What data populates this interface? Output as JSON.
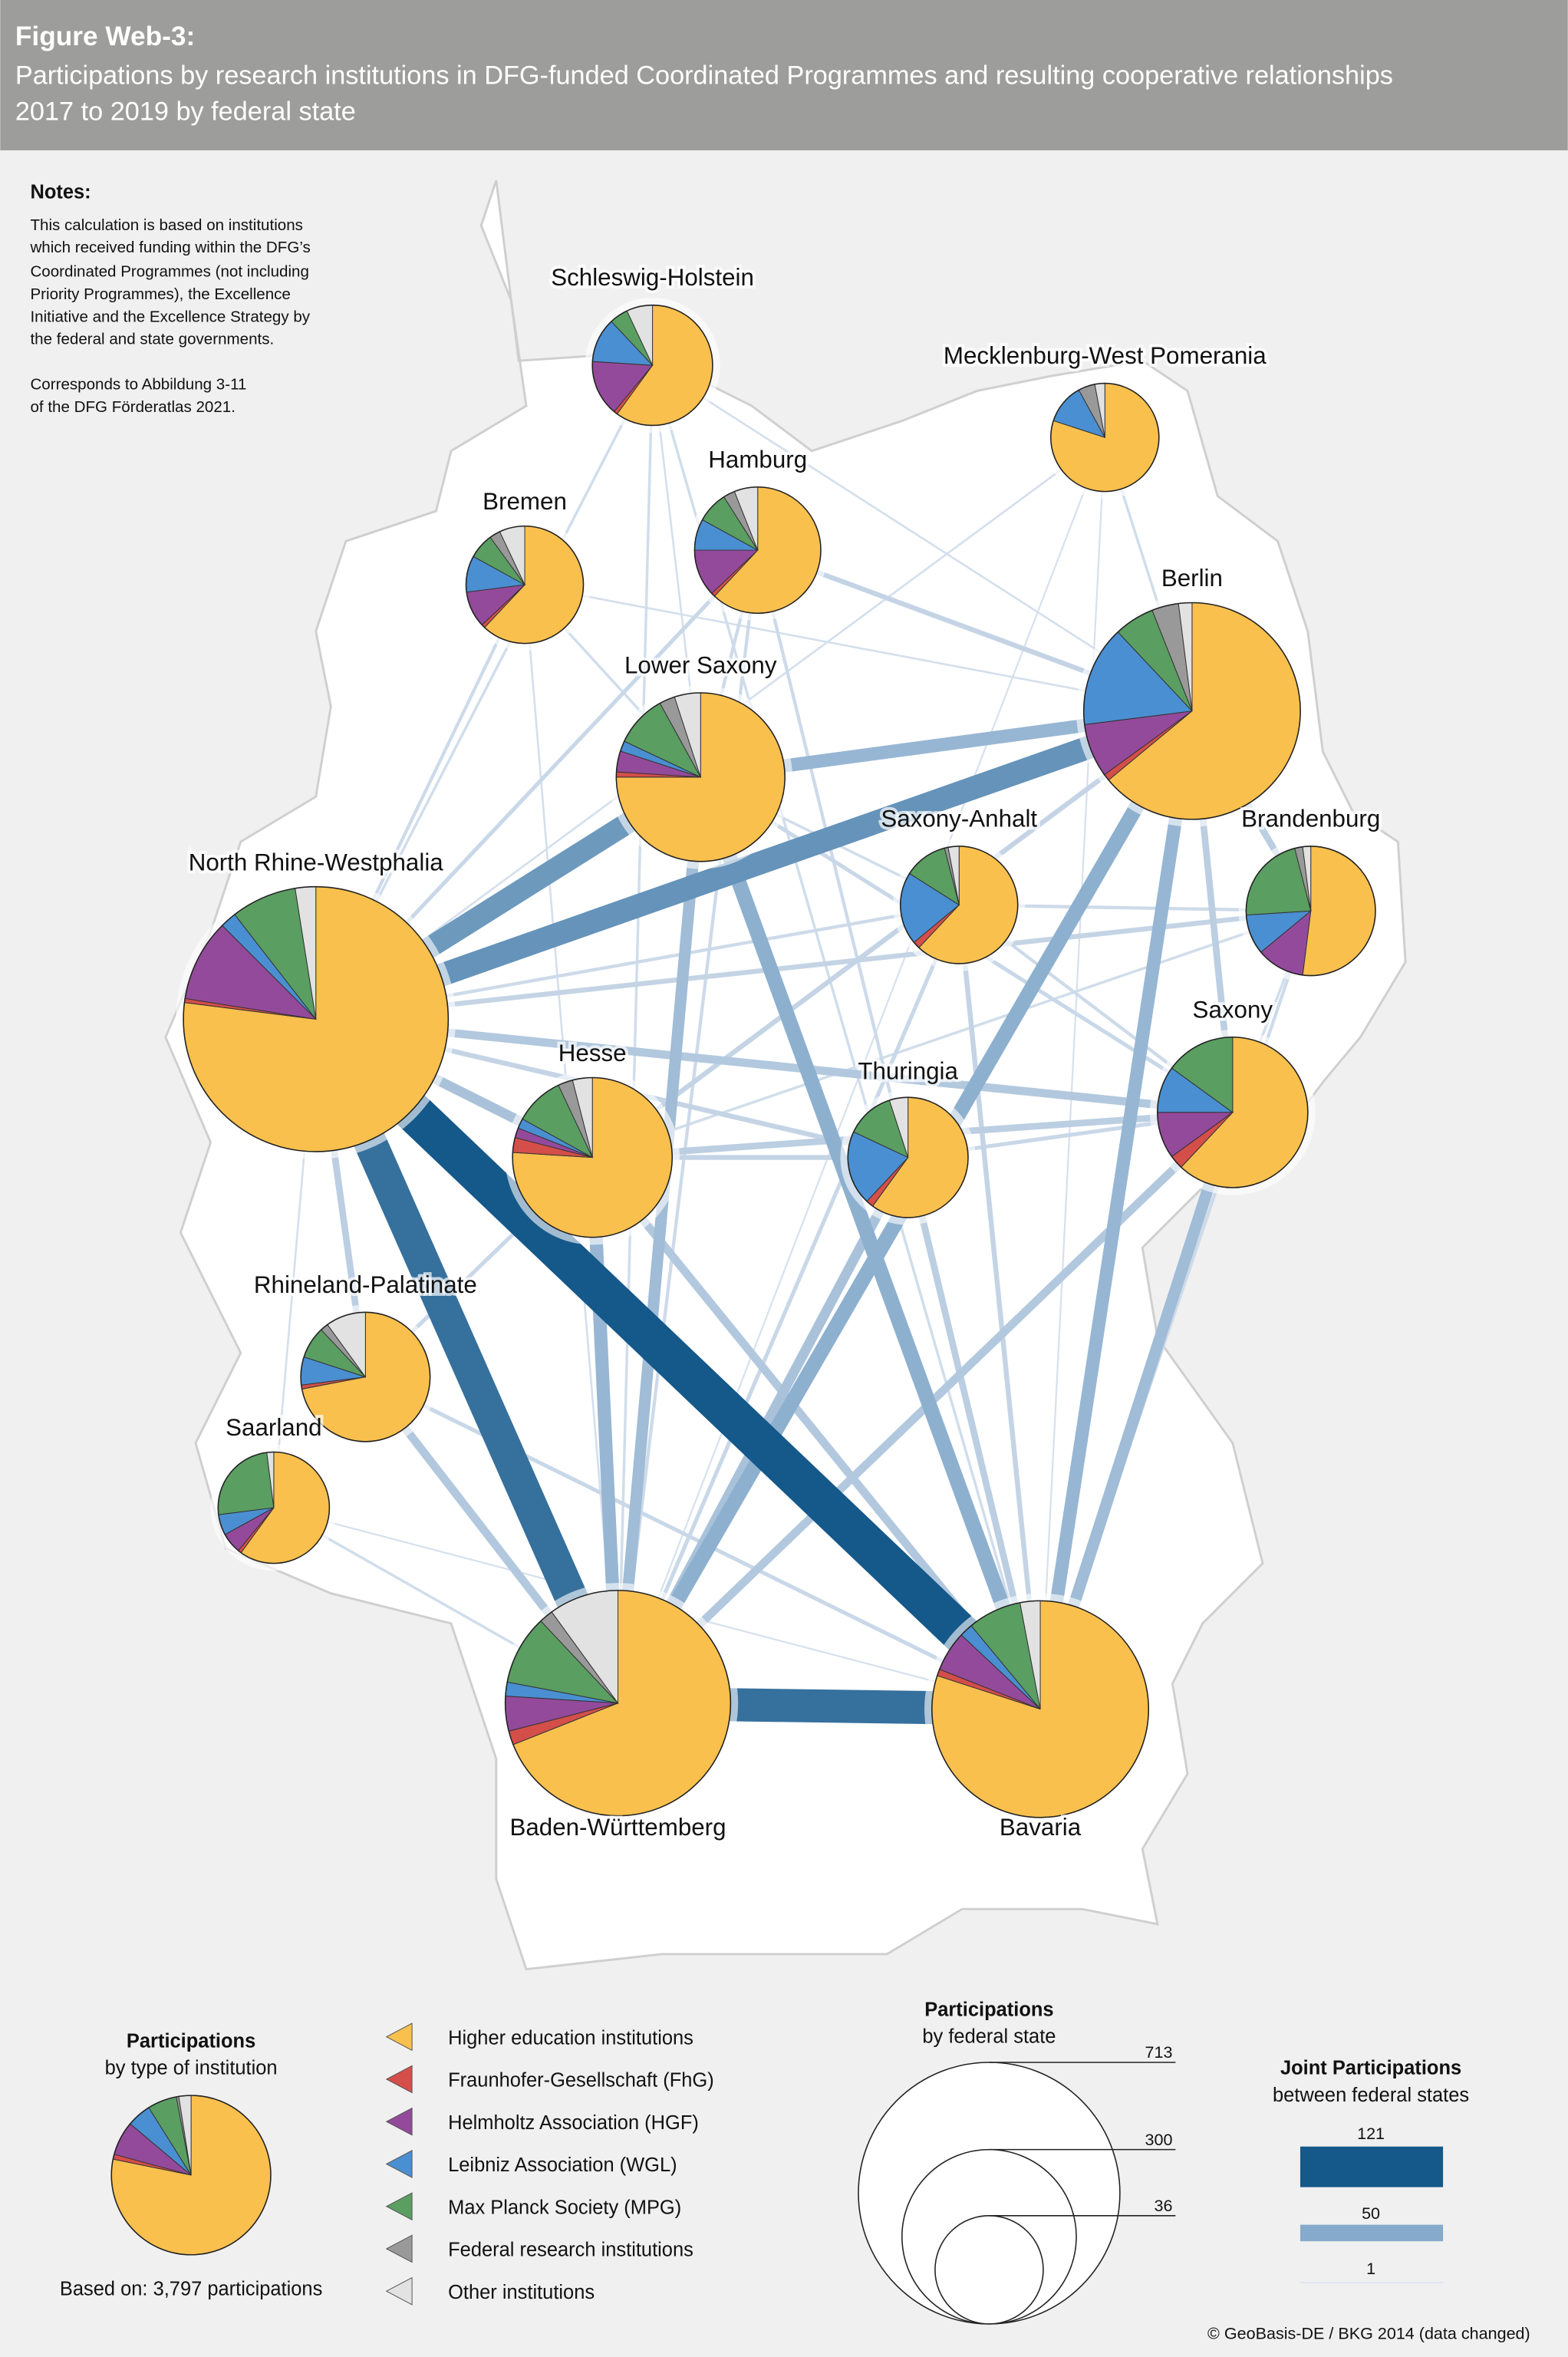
{
  "header": {
    "figure": "Figure Web-3:",
    "title_line1": "Participations by research institutions in DFG-funded Coordinated Programmes and resulting cooperative relationships",
    "title_line2": "2017 to 2019 by federal state"
  },
  "notes": {
    "heading": "Notes:",
    "lines": [
      "This calculation is based on institutions",
      "which received funding within the DFG’s",
      "Coordinated Programmes (not including",
      "Priority Programmes), the Excellence",
      "Initiative and the Excellence Strategy by",
      "the federal and state governments."
    ],
    "ref_lines": [
      "Corresponds to Abbildung 3-11",
      "of the DFG Förderatlas 2021."
    ]
  },
  "colors": {
    "hei": "#f9c04e",
    "fhg": "#d44e4a",
    "hgf": "#944a9b",
    "wgl": "#4a8fd1",
    "mpg": "#5a9e62",
    "fed": "#999999",
    "other": "#e2e2e2",
    "edge_low": "#dde5f0",
    "edge_mid": "#85aacb",
    "edge_high": "#15588a"
  },
  "chart_data": {
    "type": "network-pie-map",
    "title": "Participations by research institutions in DFG-funded Coordinated Programmes and resulting cooperative relationships 2017 to 2019 by federal state",
    "categories": [
      "Higher education institutions",
      "Fraunhofer-Gesellschaft (FhG)",
      "Helmholtz Association (HGF)",
      "Leibniz Association (WGL)",
      "Max Planck Society (MPG)",
      "Federal research institutions",
      "Other institutions"
    ],
    "category_keys": [
      "hei",
      "fhg",
      "hgf",
      "wgl",
      "mpg",
      "fed",
      "other"
    ],
    "states": [
      {
        "id": "SH",
        "name": "Schleswig-Holstein",
        "participations": 147,
        "shares": [
          0.6,
          0.01,
          0.15,
          0.12,
          0.05,
          0.0,
          0.07
        ]
      },
      {
        "id": "MV",
        "name": "Mecklenburg-West Pomerania",
        "participations": 119,
        "shares": [
          0.8,
          0.0,
          0.0,
          0.12,
          0.0,
          0.05,
          0.03
        ]
      },
      {
        "id": "HH",
        "name": "Hamburg",
        "participations": 162,
        "shares": [
          0.62,
          0.01,
          0.12,
          0.08,
          0.08,
          0.03,
          0.06
        ]
      },
      {
        "id": "HB",
        "name": "Bremen",
        "participations": 140,
        "shares": [
          0.62,
          0.01,
          0.1,
          0.1,
          0.07,
          0.03,
          0.07
        ]
      },
      {
        "id": "NI",
        "name": "Lower Saxony",
        "participations": 289,
        "shares": [
          0.75,
          0.01,
          0.04,
          0.02,
          0.1,
          0.03,
          0.05
        ]
      },
      {
        "id": "BE",
        "name": "Berlin",
        "participations": 477,
        "shares": [
          0.64,
          0.01,
          0.08,
          0.15,
          0.06,
          0.04,
          0.02
        ]
      },
      {
        "id": "ST",
        "name": "Saxony-Anhalt",
        "participations": 140,
        "shares": [
          0.62,
          0.02,
          0.0,
          0.2,
          0.12,
          0.01,
          0.03
        ]
      },
      {
        "id": "BB",
        "name": "Brandenburg",
        "participations": 170,
        "shares": [
          0.52,
          0.0,
          0.12,
          0.1,
          0.22,
          0.02,
          0.02
        ]
      },
      {
        "id": "NW",
        "name": "North Rhine-Westphalia",
        "participations": 713,
        "shares": [
          0.77,
          0.005,
          0.1,
          0.02,
          0.08,
          0.0,
          0.025
        ]
      },
      {
        "id": "SN",
        "name": "Saxony",
        "participations": 230,
        "shares": [
          0.62,
          0.03,
          0.1,
          0.1,
          0.15,
          0.0,
          0.0
        ]
      },
      {
        "id": "HE",
        "name": "Hesse",
        "participations": 259,
        "shares": [
          0.76,
          0.03,
          0.02,
          0.02,
          0.1,
          0.03,
          0.04
        ]
      },
      {
        "id": "TH",
        "name": "Thuringia",
        "participations": 147,
        "shares": [
          0.6,
          0.02,
          0.0,
          0.2,
          0.13,
          0.0,
          0.05
        ]
      },
      {
        "id": "RP",
        "name": "Rhineland-Palatinate",
        "participations": 170,
        "shares": [
          0.72,
          0.01,
          0.0,
          0.07,
          0.08,
          0.02,
          0.1
        ]
      },
      {
        "id": "SL",
        "name": "Saarland",
        "participations": 126,
        "shares": [
          0.6,
          0.01,
          0.06,
          0.06,
          0.25,
          0.0,
          0.02
        ]
      },
      {
        "id": "BW",
        "name": "Baden-Württemberg",
        "participations": 516,
        "shares": [
          0.69,
          0.02,
          0.05,
          0.02,
          0.1,
          0.02,
          0.1
        ]
      },
      {
        "id": "BY",
        "name": "Bavaria",
        "participations": 477,
        "shares": [
          0.8,
          0.01,
          0.06,
          0.02,
          0.08,
          0.0,
          0.03
        ]
      }
    ],
    "joint_participations": [
      [
        "NW",
        "BY",
        121
      ],
      [
        "NW",
        "BW",
        100
      ],
      [
        "BW",
        "BY",
        100
      ],
      [
        "NW",
        "BE",
        70
      ],
      [
        "NW",
        "NI",
        65
      ],
      [
        "NI",
        "BE",
        40
      ],
      [
        "BE",
        "BW",
        45
      ],
      [
        "BE",
        "BY",
        40
      ],
      [
        "NI",
        "BY",
        45
      ],
      [
        "NI",
        "BW",
        35
      ],
      [
        "HE",
        "BW",
        40
      ],
      [
        "NW",
        "HE",
        30
      ],
      [
        "NW",
        "SN",
        25
      ],
      [
        "NW",
        "BB",
        15
      ],
      [
        "NW",
        "ST",
        10
      ],
      [
        "NW",
        "TH",
        15
      ],
      [
        "NW",
        "RP",
        20
      ],
      [
        "SN",
        "BY",
        35
      ],
      [
        "SN",
        "BW",
        25
      ],
      [
        "TH",
        "BW",
        30
      ],
      [
        "TH",
        "BY",
        20
      ],
      [
        "HE",
        "BY",
        25
      ],
      [
        "BE",
        "SN",
        20
      ],
      [
        "BE",
        "BB",
        20
      ],
      [
        "BE",
        "HH",
        15
      ],
      [
        "BB",
        "ST",
        10
      ],
      [
        "HE",
        "SN",
        20
      ],
      [
        "HE",
        "TH",
        15
      ],
      [
        "RP",
        "BW",
        25
      ],
      [
        "RP",
        "BY",
        12
      ],
      [
        "SL",
        "BW",
        8
      ],
      [
        "RP",
        "HE",
        12
      ],
      [
        "HH",
        "NW",
        12
      ],
      [
        "HH",
        "NI",
        10
      ],
      [
        "SH",
        "NW",
        8
      ],
      [
        "SH",
        "NI",
        6
      ],
      [
        "SH",
        "BE",
        6
      ],
      [
        "HB",
        "NW",
        10
      ],
      [
        "HB",
        "NI",
        8
      ],
      [
        "HB",
        "BW",
        6
      ],
      [
        "MV",
        "BE",
        8
      ],
      [
        "MV",
        "NW",
        6
      ],
      [
        "ST",
        "BY",
        15
      ],
      [
        "ST",
        "SN",
        10
      ],
      [
        "ST",
        "BW",
        12
      ],
      [
        "HH",
        "BY",
        10
      ],
      [
        "HH",
        "BW",
        10
      ],
      [
        "SN",
        "TH",
        12
      ],
      [
        "BE",
        "HE",
        15
      ],
      [
        "BB",
        "BY",
        10
      ],
      [
        "BB",
        "SN",
        8
      ],
      [
        "SN",
        "NI",
        12
      ],
      [
        "HB",
        "BE",
        6
      ],
      [
        "SH",
        "BY",
        8
      ],
      [
        "SH",
        "BW",
        8
      ],
      [
        "SL",
        "NW",
        6
      ],
      [
        "SL",
        "BY",
        5
      ],
      [
        "BB",
        "HE",
        8
      ],
      [
        "MV",
        "BY",
        5
      ],
      [
        "MV",
        "BW",
        5
      ],
      [
        "ST",
        "NI",
        8
      ]
    ],
    "total_participations": 3797
  },
  "legend": {
    "type_title": "Participations",
    "type_subtitle": "by type of institution",
    "type_shares": [
      0.79,
      0.01,
      0.07,
      0.05,
      0.06,
      0.005,
      0.025
    ],
    "based_on": "Based on: 3,797 participations",
    "items": [
      "Higher education institutions",
      "Fraunhofer-Gesellschaft (FhG)",
      "Helmholtz Association (HGF)",
      "Leibniz Association (WGL)",
      "Max Planck Society (MPG)",
      "Federal research institutions",
      "Other institutions"
    ],
    "size_title": "Participations",
    "size_subtitle": "by federal state",
    "size_values": [
      "713",
      "300",
      "36"
    ],
    "joint_title": "Joint Participations",
    "joint_subtitle": "between federal states",
    "joint_values": [
      "121",
      "50",
      "1"
    ]
  },
  "copyright": "© GeoBasis-DE / BKG 2014 (data changed)"
}
